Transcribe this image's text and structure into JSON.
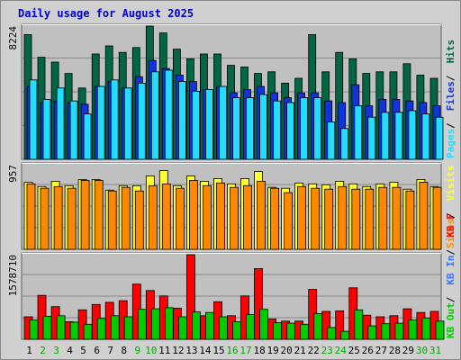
{
  "chart_data": {
    "type": "bar",
    "title": "Daily usage for August 2025",
    "categories": [
      "1",
      "2",
      "3",
      "4",
      "5",
      "6",
      "7",
      "8",
      "9",
      "10",
      "11",
      "12",
      "13",
      "14",
      "15",
      "16",
      "17",
      "18",
      "19",
      "20",
      "21",
      "22",
      "23",
      "24",
      "25",
      "26",
      "27",
      "28",
      "29",
      "30",
      "31"
    ],
    "weekend_days": [
      "2",
      "3",
      "9",
      "10",
      "16",
      "17",
      "23",
      "24",
      "30",
      "31"
    ],
    "panels": [
      {
        "name": "top",
        "ymax_label": "8224",
        "ymax": 8224,
        "series": [
          {
            "name": "Hits",
            "color": "#006644",
            "values": [
              7700,
              6300,
              6000,
              5300,
              4400,
              6500,
              7000,
              6600,
              6900,
              8224,
              7800,
              6800,
              6200,
              6500,
              6500,
              5800,
              5700,
              5300,
              5400,
              4700,
              5000,
              7700,
              5400,
              6600,
              6200,
              5300,
              5400,
              5400,
              5900,
              5200,
              5000
            ]
          },
          {
            "name": "Files",
            "color": "#1133dd",
            "values": [
              4500,
              3500,
              3600,
              3500,
              3400,
              4500,
              4800,
              4400,
              5100,
              6100,
              5600,
              5200,
              4800,
              4300,
              4500,
              4100,
              4300,
              4500,
              4100,
              3800,
              4100,
              4100,
              3600,
              3500,
              4600,
              3300,
              3700,
              3700,
              3600,
              3500,
              3300
            ]
          },
          {
            "name": "Pages",
            "color": "#22ddff",
            "values": [
              4900,
              3700,
              4400,
              3600,
              2800,
              4500,
              4900,
              4400,
              4700,
              5400,
              5500,
              4800,
              4200,
              4300,
              4500,
              3800,
              3800,
              4000,
              3600,
              3500,
              3800,
              3800,
              2300,
              1900,
              3300,
              2600,
              2900,
              2900,
              3000,
              2800,
              2600
            ]
          }
        ]
      },
      {
        "name": "middle",
        "ymax_label": "957",
        "ymax": 957,
        "series": [
          {
            "name": "Visits",
            "color": "#ffff33",
            "values": [
              760,
              710,
              770,
              720,
              790,
              790,
              670,
              720,
              720,
              830,
              890,
              720,
              830,
              770,
              800,
              740,
              800,
              880,
              700,
              690,
              750,
              740,
              730,
              770,
              740,
              710,
              740,
              760,
              680,
              790,
              710
            ]
          },
          {
            "name": "Sites",
            "color": "#ff8800",
            "values": [
              740,
              690,
              710,
              690,
              780,
              780,
              660,
              700,
              660,
              720,
              740,
              690,
              780,
              720,
              750,
              700,
              720,
              770,
              690,
              640,
              710,
              690,
              680,
              710,
              680,
              680,
              700,
              700,
              660,
              760,
              700
            ]
          }
        ]
      },
      {
        "name": "bottom",
        "ymax_label": "1578710",
        "ymax": 1578710,
        "series": [
          {
            "name": "KB F",
            "color": "#ff0000",
            "values": [
              420000,
              820000,
              610000,
              330000,
              550000,
              650000,
              690000,
              720000,
              1030000,
              910000,
              810000,
              580000,
              1578710,
              440000,
              700000,
              440000,
              810000,
              1320000,
              380000,
              340000,
              340000,
              930000,
              520000,
              530000,
              960000,
              450000,
              420000,
              440000,
              570000,
              500000,
              520000
            ]
          },
          {
            "name": "KB In",
            "color": "#3377ff",
            "values": [
              0,
              0,
              0,
              0,
              0,
              0,
              0,
              0,
              0,
              0,
              0,
              0,
              0,
              0,
              0,
              0,
              0,
              0,
              0,
              0,
              0,
              0,
              0,
              0,
              0,
              0,
              0,
              0,
              0,
              0,
              0
            ]
          },
          {
            "name": "KB Out",
            "color": "#00cc00",
            "values": [
              360000,
              430000,
              440000,
              320000,
              280000,
              390000,
              440000,
              420000,
              560000,
              570000,
              590000,
              420000,
              510000,
              500000,
              420000,
              330000,
              460000,
              560000,
              310000,
              300000,
              280000,
              480000,
              220000,
              150000,
              550000,
              250000,
              290000,
              300000,
              360000,
              400000,
              340000
            ]
          }
        ]
      }
    ]
  }
}
